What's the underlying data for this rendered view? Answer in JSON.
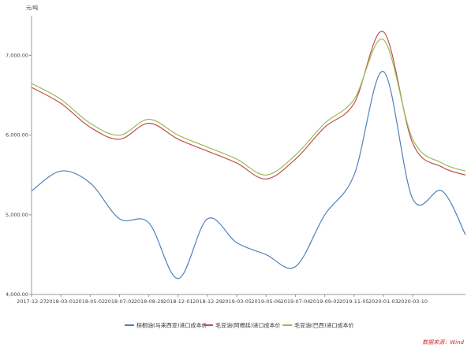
{
  "chart_data": {
    "type": "line",
    "unit_label": "元/吨",
    "source": "数据来源：Wind",
    "ylim": [
      4000,
      7500
    ],
    "yticks": [
      {
        "value": 4000,
        "label": "4,000.00"
      },
      {
        "value": 5000,
        "label": "5,000.00"
      },
      {
        "value": 6000,
        "label": "6,000.00"
      },
      {
        "value": 7000,
        "label": "7,000.00"
      }
    ],
    "xticks": [
      "2017-12-27",
      "2018-03-01",
      "2018-05-02",
      "2018-07-02",
      "2018-08-29",
      "2018-12-01",
      "2018-12-29",
      "2019-03-05",
      "2019-05-06",
      "2019-07-04",
      "2019-09-02",
      "2019-11-05",
      "2020-01-03",
      "2020-03-10"
    ],
    "x_position": [
      0,
      1,
      2,
      3,
      4,
      5,
      6,
      7,
      8,
      9,
      10,
      11,
      12,
      13,
      14,
      14.8
    ],
    "x_range": [
      0,
      14.8
    ],
    "series": [
      {
        "name": "棕榈油(马来西亚)进口成本价",
        "color": "#4f81bd",
        "values": [
          5300,
          5550,
          5400,
          4950,
          4900,
          4200,
          4950,
          4650,
          4500,
          4350,
          5000,
          5500,
          6800,
          5200,
          5300,
          4750
        ]
      },
      {
        "name": "毛豆油(阿根廷)进口成本价",
        "color": "#c0504d",
        "values": [
          6600,
          6400,
          6100,
          5950,
          6150,
          5950,
          5800,
          5650,
          5450,
          5700,
          6100,
          6400,
          7300,
          5900,
          5600,
          5500
        ]
      },
      {
        "name": "毛豆油(巴西)进口成本价",
        "color": "#9bbb59",
        "values": [
          6650,
          6450,
          6150,
          6000,
          6200,
          6000,
          5850,
          5700,
          5500,
          5750,
          6150,
          6450,
          7200,
          5950,
          5650,
          5550
        ]
      }
    ]
  }
}
